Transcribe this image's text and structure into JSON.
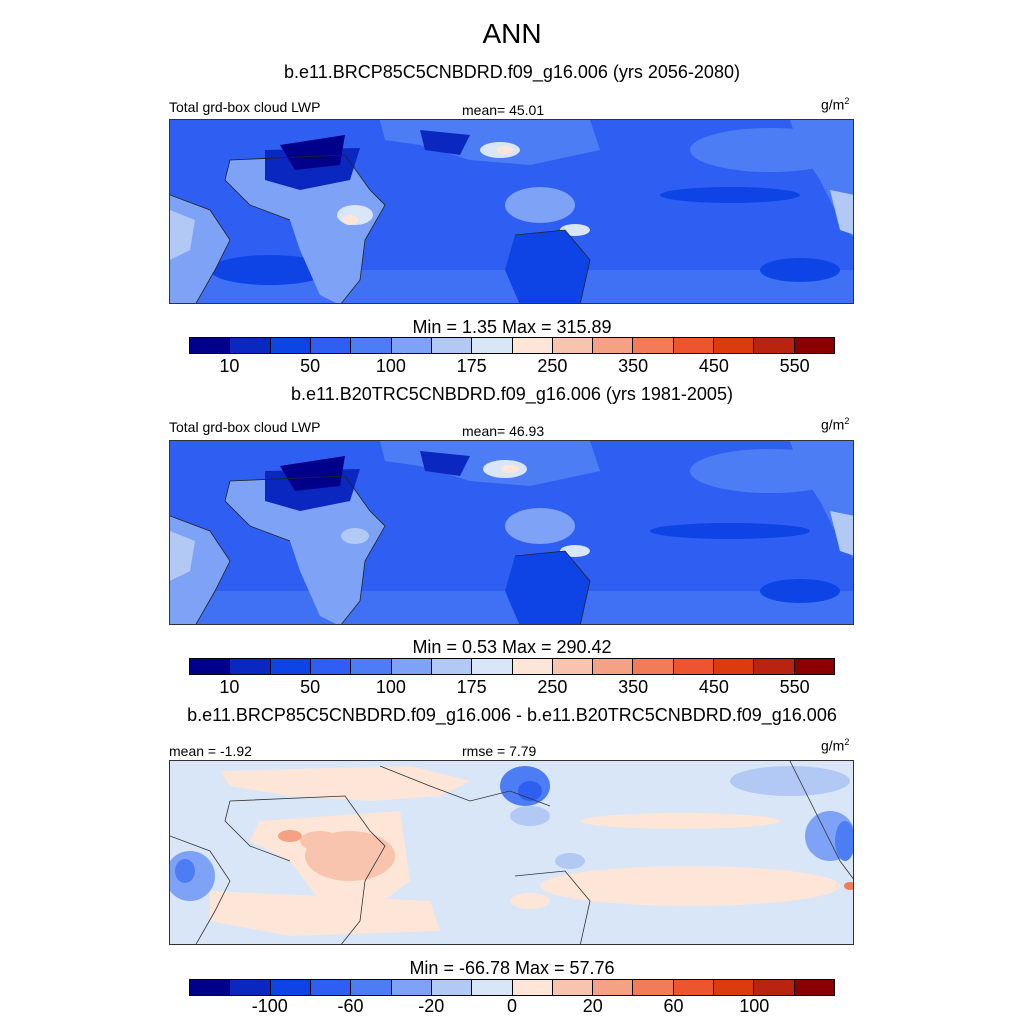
{
  "title": "ANN",
  "units": {
    "base": "g/m",
    "exp": "2"
  },
  "panels": [
    {
      "case": "b.e11.BRCP85C5CNBDRD.f09_g16.006 (yrs 2056-2080)",
      "left_label": "Total grd-box cloud LWP",
      "stat": "mean=  45.01",
      "minmax": "Min =   1.35 Max = 315.89",
      "kind": "field"
    },
    {
      "case": "b.e11.B20TRC5CNBDRD.f09_g16.006 (yrs 1981-2005)",
      "left_label": "Total grd-box cloud LWP",
      "stat": "mean=  46.93",
      "minmax": "Min =   0.53 Max = 290.42",
      "kind": "field"
    },
    {
      "case": "b.e11.BRCP85C5CNBDRD.f09_g16.006 - b.e11.B20TRC5CNBDRD.f09_g16.006",
      "left_label": "mean =  -1.92",
      "stat": "rmse =   7.79",
      "minmax": "Min = -66.78 Max =  57.76",
      "kind": "diff"
    }
  ],
  "colorbar": {
    "colors": [
      "#00008b",
      "#0a28c0",
      "#0e44e6",
      "#2e5ff2",
      "#4d7df5",
      "#7ea2f5",
      "#b2c8f5",
      "#d9e6f7",
      "#fde6d8",
      "#f8c4ad",
      "#f5a183",
      "#f27c58",
      "#ec5530",
      "#dc3a0f",
      "#b82410",
      "#8b0000"
    ],
    "ticks_field": [
      "10",
      "50",
      "100",
      "175",
      "250",
      "350",
      "450",
      "550"
    ],
    "ticks_diff": [
      "-100",
      "-60",
      "-20",
      "0",
      "20",
      "60",
      "100"
    ]
  }
}
